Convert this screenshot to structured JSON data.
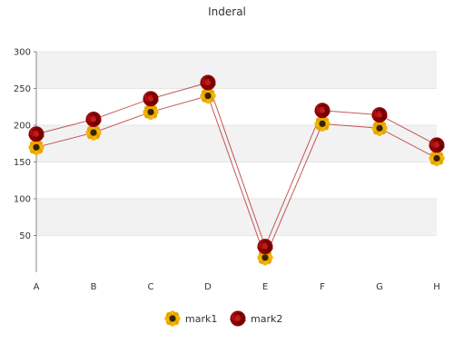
{
  "chart_data": {
    "type": "line",
    "title": "Inderal",
    "categories": [
      "A",
      "B",
      "C",
      "D",
      "E",
      "F",
      "G",
      "H"
    ],
    "ylim": [
      0,
      300
    ],
    "yticks": [
      50,
      100,
      150,
      200,
      250,
      300
    ],
    "grid": "alternating horizontal bands",
    "legend_position": "bottom",
    "series": [
      {
        "name": "mark1",
        "values": [
          170,
          190,
          218,
          240,
          20,
          202,
          196,
          155
        ],
        "color": "#b22222",
        "marker": "sunflower-icon"
      },
      {
        "name": "mark2",
        "values": [
          188,
          208,
          236,
          258,
          35,
          220,
          214,
          173
        ],
        "color": "#b22222",
        "marker": "rose-icon"
      }
    ]
  }
}
